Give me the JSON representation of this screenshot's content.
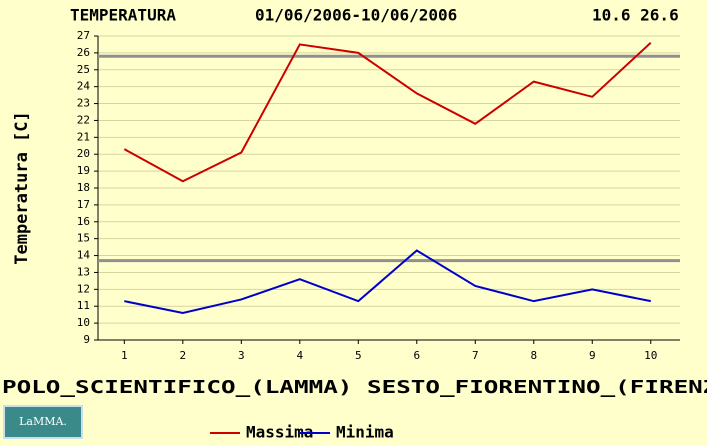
{
  "chart_data": {
    "type": "line",
    "title": "TEMPERATURA",
    "subtitle": "01/06/2006-10/06/2006",
    "annotation": "10.6 26.6",
    "ylabel": "Temperatura [C]",
    "caption": "POLO_SCIENTIFICO_(LAMMA) SESTO_FIORENTINO_(FIRENZE",
    "logo": "LaMMA.",
    "x": [
      1,
      2,
      3,
      4,
      5,
      6,
      7,
      8,
      9,
      10
    ],
    "xlim": [
      0.55,
      10.5
    ],
    "xticks": [
      1,
      2,
      3,
      4,
      5,
      6,
      7,
      8,
      9,
      10
    ],
    "ylim": [
      9,
      27
    ],
    "yticks": [
      9,
      10,
      11,
      12,
      13,
      14,
      15,
      16,
      17,
      18,
      19,
      20,
      21,
      22,
      23,
      24,
      25,
      26,
      27
    ],
    "grid": true,
    "reference_lines": [
      25.8,
      13.7
    ],
    "reference_color": "#909090",
    "series": [
      {
        "name": "Massima",
        "color": "#cc0000",
        "values": [
          20.3,
          18.4,
          20.1,
          26.5,
          26.0,
          23.6,
          21.8,
          24.3,
          23.4,
          26.6
        ]
      },
      {
        "name": "Minima",
        "color": "#0000cc",
        "values": [
          11.3,
          10.6,
          11.4,
          12.6,
          11.3,
          14.3,
          12.2,
          11.3,
          12.0,
          11.3
        ]
      }
    ]
  }
}
